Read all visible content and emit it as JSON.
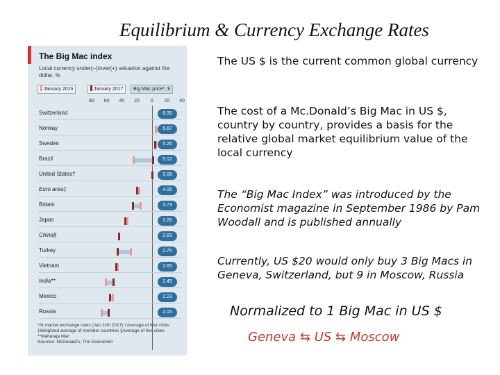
{
  "slide": {
    "title": "Equilibrium & Currency Exchange Rates",
    "paragraphs": [
      "The US $ is the current common global currency",
      "The cost of a Mc.Donald’s Big Mac in   US $, country by country, provides a basis for the relative global market equilibrium value of the local currency",
      "The “Big Mac Index” was introduced by the Economist magazine in September 1986 by Pam Woodall and is published annually",
      "Currently, US $20 would only buy 3 Big Macs in Geneva, Switzerland, but 9 in Moscow, Russia"
    ],
    "normalized": "Normalized to 1 Big Mac in US $",
    "cities": "Geneva ⇆ US ⇆ Moscow"
  },
  "chart": {
    "title": "The Big Mac index",
    "subtitle": "Local currency under(−)/over(+) valuation against the dollar, %",
    "legend": {
      "jan2016": "January 2016",
      "jan2017": "January 2017",
      "price": "Big Mac price*, $"
    },
    "axis_ticks": [
      "80",
      "60",
      "40",
      "20",
      "0",
      "20",
      "40"
    ],
    "footnote": "*At market exchange rates (Jan 11th 2017)  †Average of four cities  ‡Weighted average of member countries  §Average of five cities  **Maharaja Mac\nSources: McDonald’s; The Economist",
    "colors": {
      "jan2016": "#e79b9b",
      "jan2017": "#8c2a28",
      "price_badge": "#2f6fa0",
      "accent": "#d6312b"
    }
  },
  "chart_data": {
    "type": "bar",
    "categories": [
      "Switzerland",
      "Norway",
      "Sweden",
      "Brazil",
      "United States†",
      "Euro area‡",
      "Britain",
      "Japan",
      "China§",
      "Turkey",
      "Vietnam",
      "India**",
      "Mexico",
      "Russia"
    ],
    "prices": [
      "6.35",
      "5.67",
      "5.26",
      "5.12",
      "5.06",
      "4.06",
      "3.73",
      "3.26",
      "2.83",
      "2.75",
      "2.65",
      "2.49",
      "2.23",
      "2.15"
    ],
    "series": [
      {
        "name": "January 2016",
        "values": [
          31,
          5,
          5,
          -25,
          0,
          -17,
          -15,
          -33,
          -44,
          -28,
          -46,
          -62,
          -52,
          -67
        ]
      },
      {
        "name": "January 2017",
        "values": [
          25,
          12,
          4,
          1,
          0,
          -20,
          -26,
          -36,
          -44,
          -46,
          -48,
          -51,
          -56,
          -58
        ]
      }
    ],
    "xlim": [
      -80,
      40
    ],
    "xlabel": "Local currency under(−)/over(+) valuation against the dollar, %",
    "legend_position": "top"
  }
}
